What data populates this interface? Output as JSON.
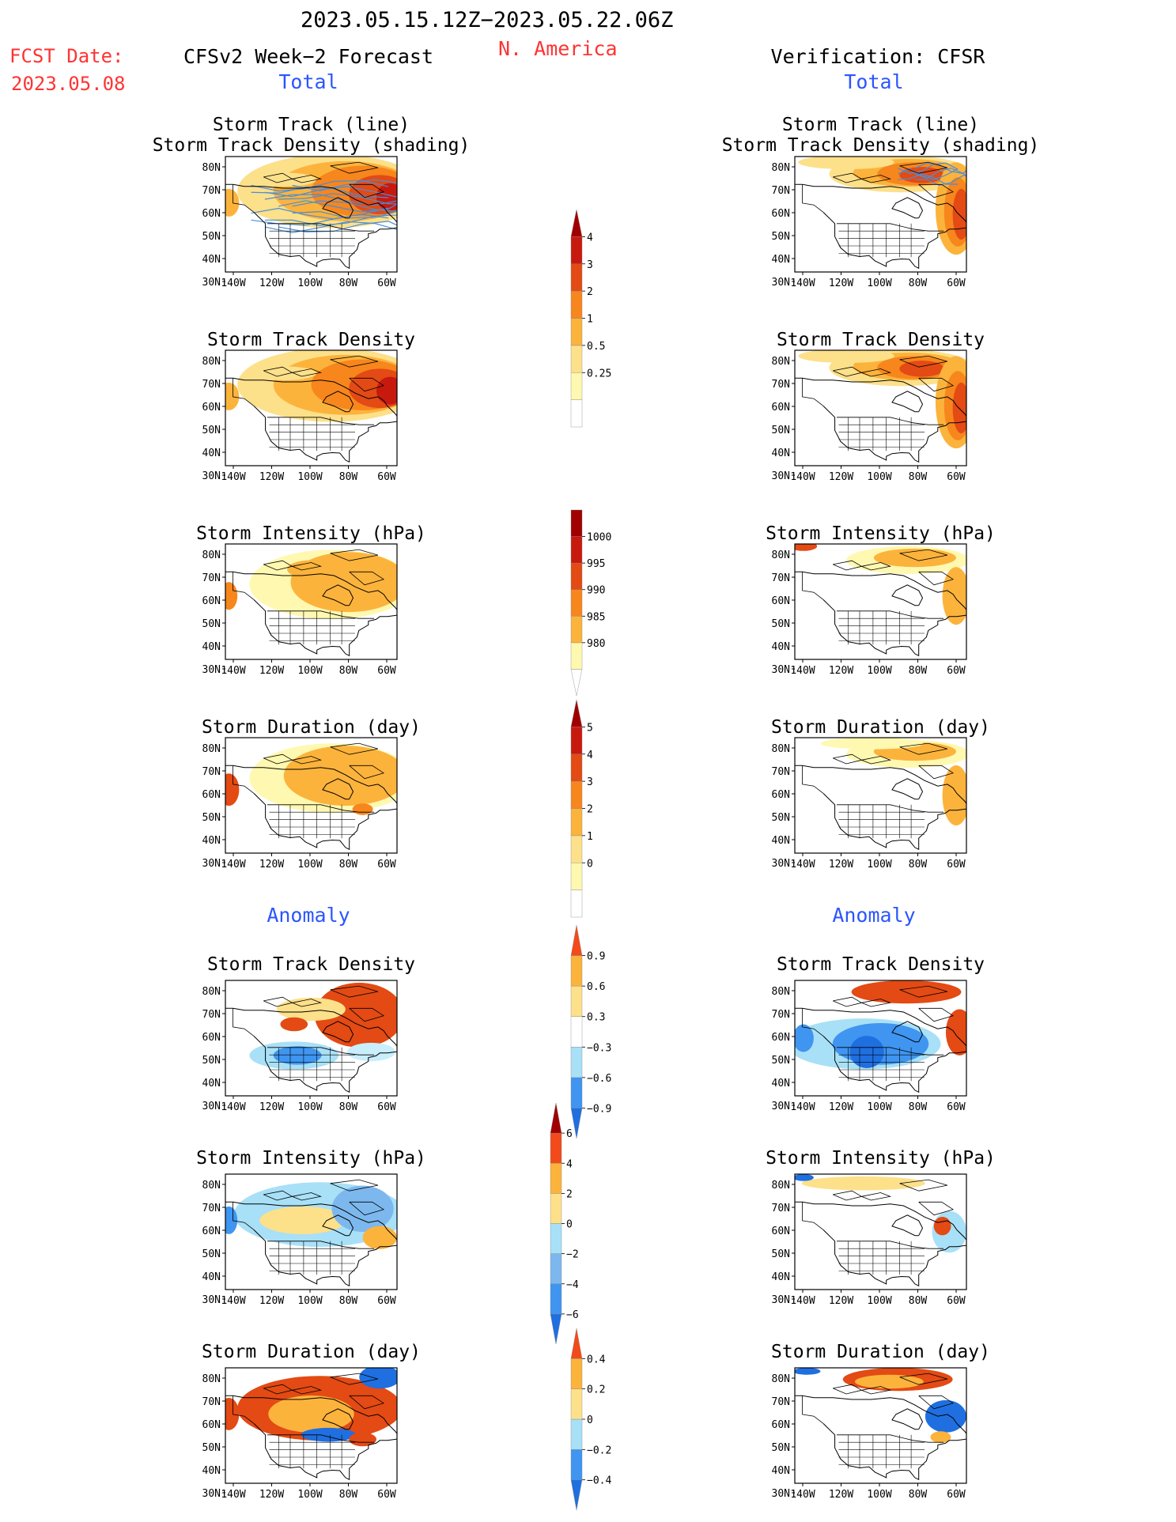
{
  "header": {
    "date_range": "2023.05.15.12Z−2023.05.22.06Z",
    "region": "N. America",
    "fcst_label": "FCST Date:",
    "fcst_date": "2023.05.08",
    "left_title": "CFSv2 Week−2 Forecast",
    "right_title": "Verification: CFSR",
    "total_label": "Total",
    "anomaly_label": "Anomaly"
  },
  "axes": {
    "lat_labels": [
      "80N",
      "70N",
      "60N",
      "50N",
      "40N",
      "30N"
    ],
    "lon_labels": [
      "140W",
      "120W",
      "100W",
      "80W",
      "60W"
    ]
  },
  "panels": [
    {
      "title_lines": [
        "Storm Track (line)",
        "Storm Track Density (shading)"
      ],
      "field": "density",
      "tracks": true
    },
    {
      "title_lines": [
        "Storm Track Density"
      ],
      "field": "density",
      "tracks": false
    },
    {
      "title_lines": [
        "Storm Intensity (hPa)"
      ],
      "field": "intensity",
      "tracks": false
    },
    {
      "title_lines": [
        "Storm Duration (day)"
      ],
      "field": "duration",
      "tracks": false
    },
    {
      "title_lines": [
        "Storm Track Density"
      ],
      "field": "anom_density",
      "tracks": false
    },
    {
      "title_lines": [
        "Storm Intensity (hPa)"
      ],
      "field": "anom_intensity",
      "tracks": false
    },
    {
      "title_lines": [
        "Storm Duration (day)"
      ],
      "field": "anom_duration",
      "tracks": false
    }
  ],
  "colorbars": [
    {
      "labels": [
        "4",
        "3",
        "2",
        "1",
        "0.5",
        "0.25"
      ],
      "colors": [
        "#ffffff",
        "#fff8b0",
        "#fde08a",
        "#fcb33c",
        "#f7861d",
        "#e34a14",
        "#c8190e",
        "#a00000"
      ]
    },
    {
      "labels": [
        "1000",
        "995",
        "990",
        "985",
        "980"
      ],
      "colors": [
        "#ffffff",
        "#fff8b0",
        "#fcb33c",
        "#f7861d",
        "#e34a14",
        "#c8190e",
        "#a00000"
      ]
    },
    {
      "labels": [
        "5",
        "4",
        "3",
        "2",
        "1",
        "0"
      ],
      "colors": [
        "#ffffff",
        "#fff8b0",
        "#fde08a",
        "#fcb33c",
        "#f7861d",
        "#e34a14",
        "#c8190e",
        "#a00000"
      ]
    },
    {
      "labels": [
        "0.9",
        "0.6",
        "0.3",
        "−0.3",
        "−0.6",
        "−0.9"
      ],
      "colors": [
        "#1f6fe0",
        "#3f95f0",
        "#a8e0f7",
        "#ffffff",
        "#fde08a",
        "#fcb33c",
        "#f24a1a"
      ]
    },
    {
      "labels": [
        "6",
        "4",
        "2",
        "0",
        "−2",
        "−4",
        "−6"
      ],
      "colors": [
        "#1f6fe0",
        "#3f95f0",
        "#7cb8ee",
        "#a8e0f7",
        "#fde08a",
        "#fcb33c",
        "#f24a1a",
        "#a00000"
      ]
    },
    {
      "labels": [
        "0.4",
        "0.2",
        "0",
        "−0.2",
        "−0.4"
      ],
      "colors": [
        "#1f6fe0",
        "#3f95f0",
        "#a8e0f7",
        "#fde08a",
        "#fcb33c",
        "#f24a1a"
      ]
    }
  ],
  "colors": {
    "header_red": "#ff3333",
    "header_blue": "#2b55ff",
    "track_line": "#4a8ed8"
  }
}
